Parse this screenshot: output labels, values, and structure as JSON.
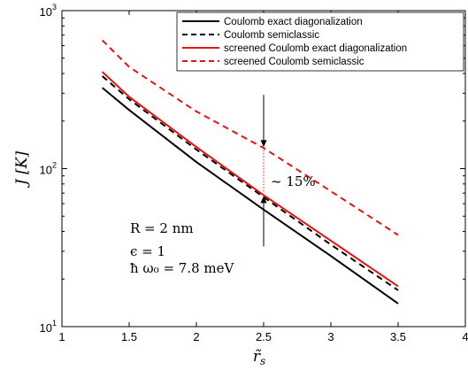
{
  "chart_data": {
    "type": "line",
    "yscale": "log",
    "xlim": [
      1,
      4
    ],
    "ylim": [
      10,
      1000
    ],
    "xticks": [
      1,
      1.5,
      2,
      2.5,
      3,
      3.5,
      4
    ],
    "xtick_labels": [
      "1",
      "1.5",
      "2",
      "2.5",
      "3",
      "3.5",
      "4"
    ],
    "ytick_labels": [
      {
        "base": "10",
        "exp": "1",
        "value": 10
      },
      {
        "base": "10",
        "exp": "2",
        "value": 100
      },
      {
        "base": "10",
        "exp": "3",
        "value": 1000
      }
    ],
    "xlabel": "r̃",
    "xlabel_sub": "s",
    "ylabel": "J [K]",
    "grid": false,
    "legend_position": "top-right",
    "series": [
      {
        "name": "Coulomb exact diagonalization",
        "color": "#000000",
        "style": "solid",
        "x": [
          1.3,
          1.5,
          2.0,
          2.5,
          3.0,
          3.5
        ],
        "y": [
          325,
          235,
          110,
          55,
          28,
          14
        ]
      },
      {
        "name": "Coulomb semiclassic",
        "color": "#000000",
        "style": "dashed",
        "x": [
          1.3,
          1.5,
          2.0,
          2.5,
          3.0,
          3.5
        ],
        "y": [
          385,
          275,
          132,
          66,
          33,
          17
        ]
      },
      {
        "name": "screened Coulomb exact diagonalization",
        "color": "#e8120c",
        "style": "solid",
        "x": [
          1.3,
          1.5,
          2.0,
          2.5,
          3.0,
          3.5
        ],
        "y": [
          410,
          285,
          137,
          68,
          35,
          18
        ]
      },
      {
        "name": "screened Coulomb semiclassic",
        "color": "#e8120c",
        "style": "dashed",
        "x": [
          1.3,
          1.5,
          2.0,
          2.5,
          3.0,
          3.5
        ],
        "y": [
          650,
          440,
          230,
          135,
          72,
          38
        ]
      }
    ],
    "annotations": {
      "percent_label": "~ 15%",
      "percent_at_x": 2.5,
      "percent_from_y": 68,
      "percent_to_y": 135,
      "params": [
        "R = 2 nm",
        "ϵ = 1",
        "ħ ω₀ = 7.8 meV"
      ]
    }
  }
}
